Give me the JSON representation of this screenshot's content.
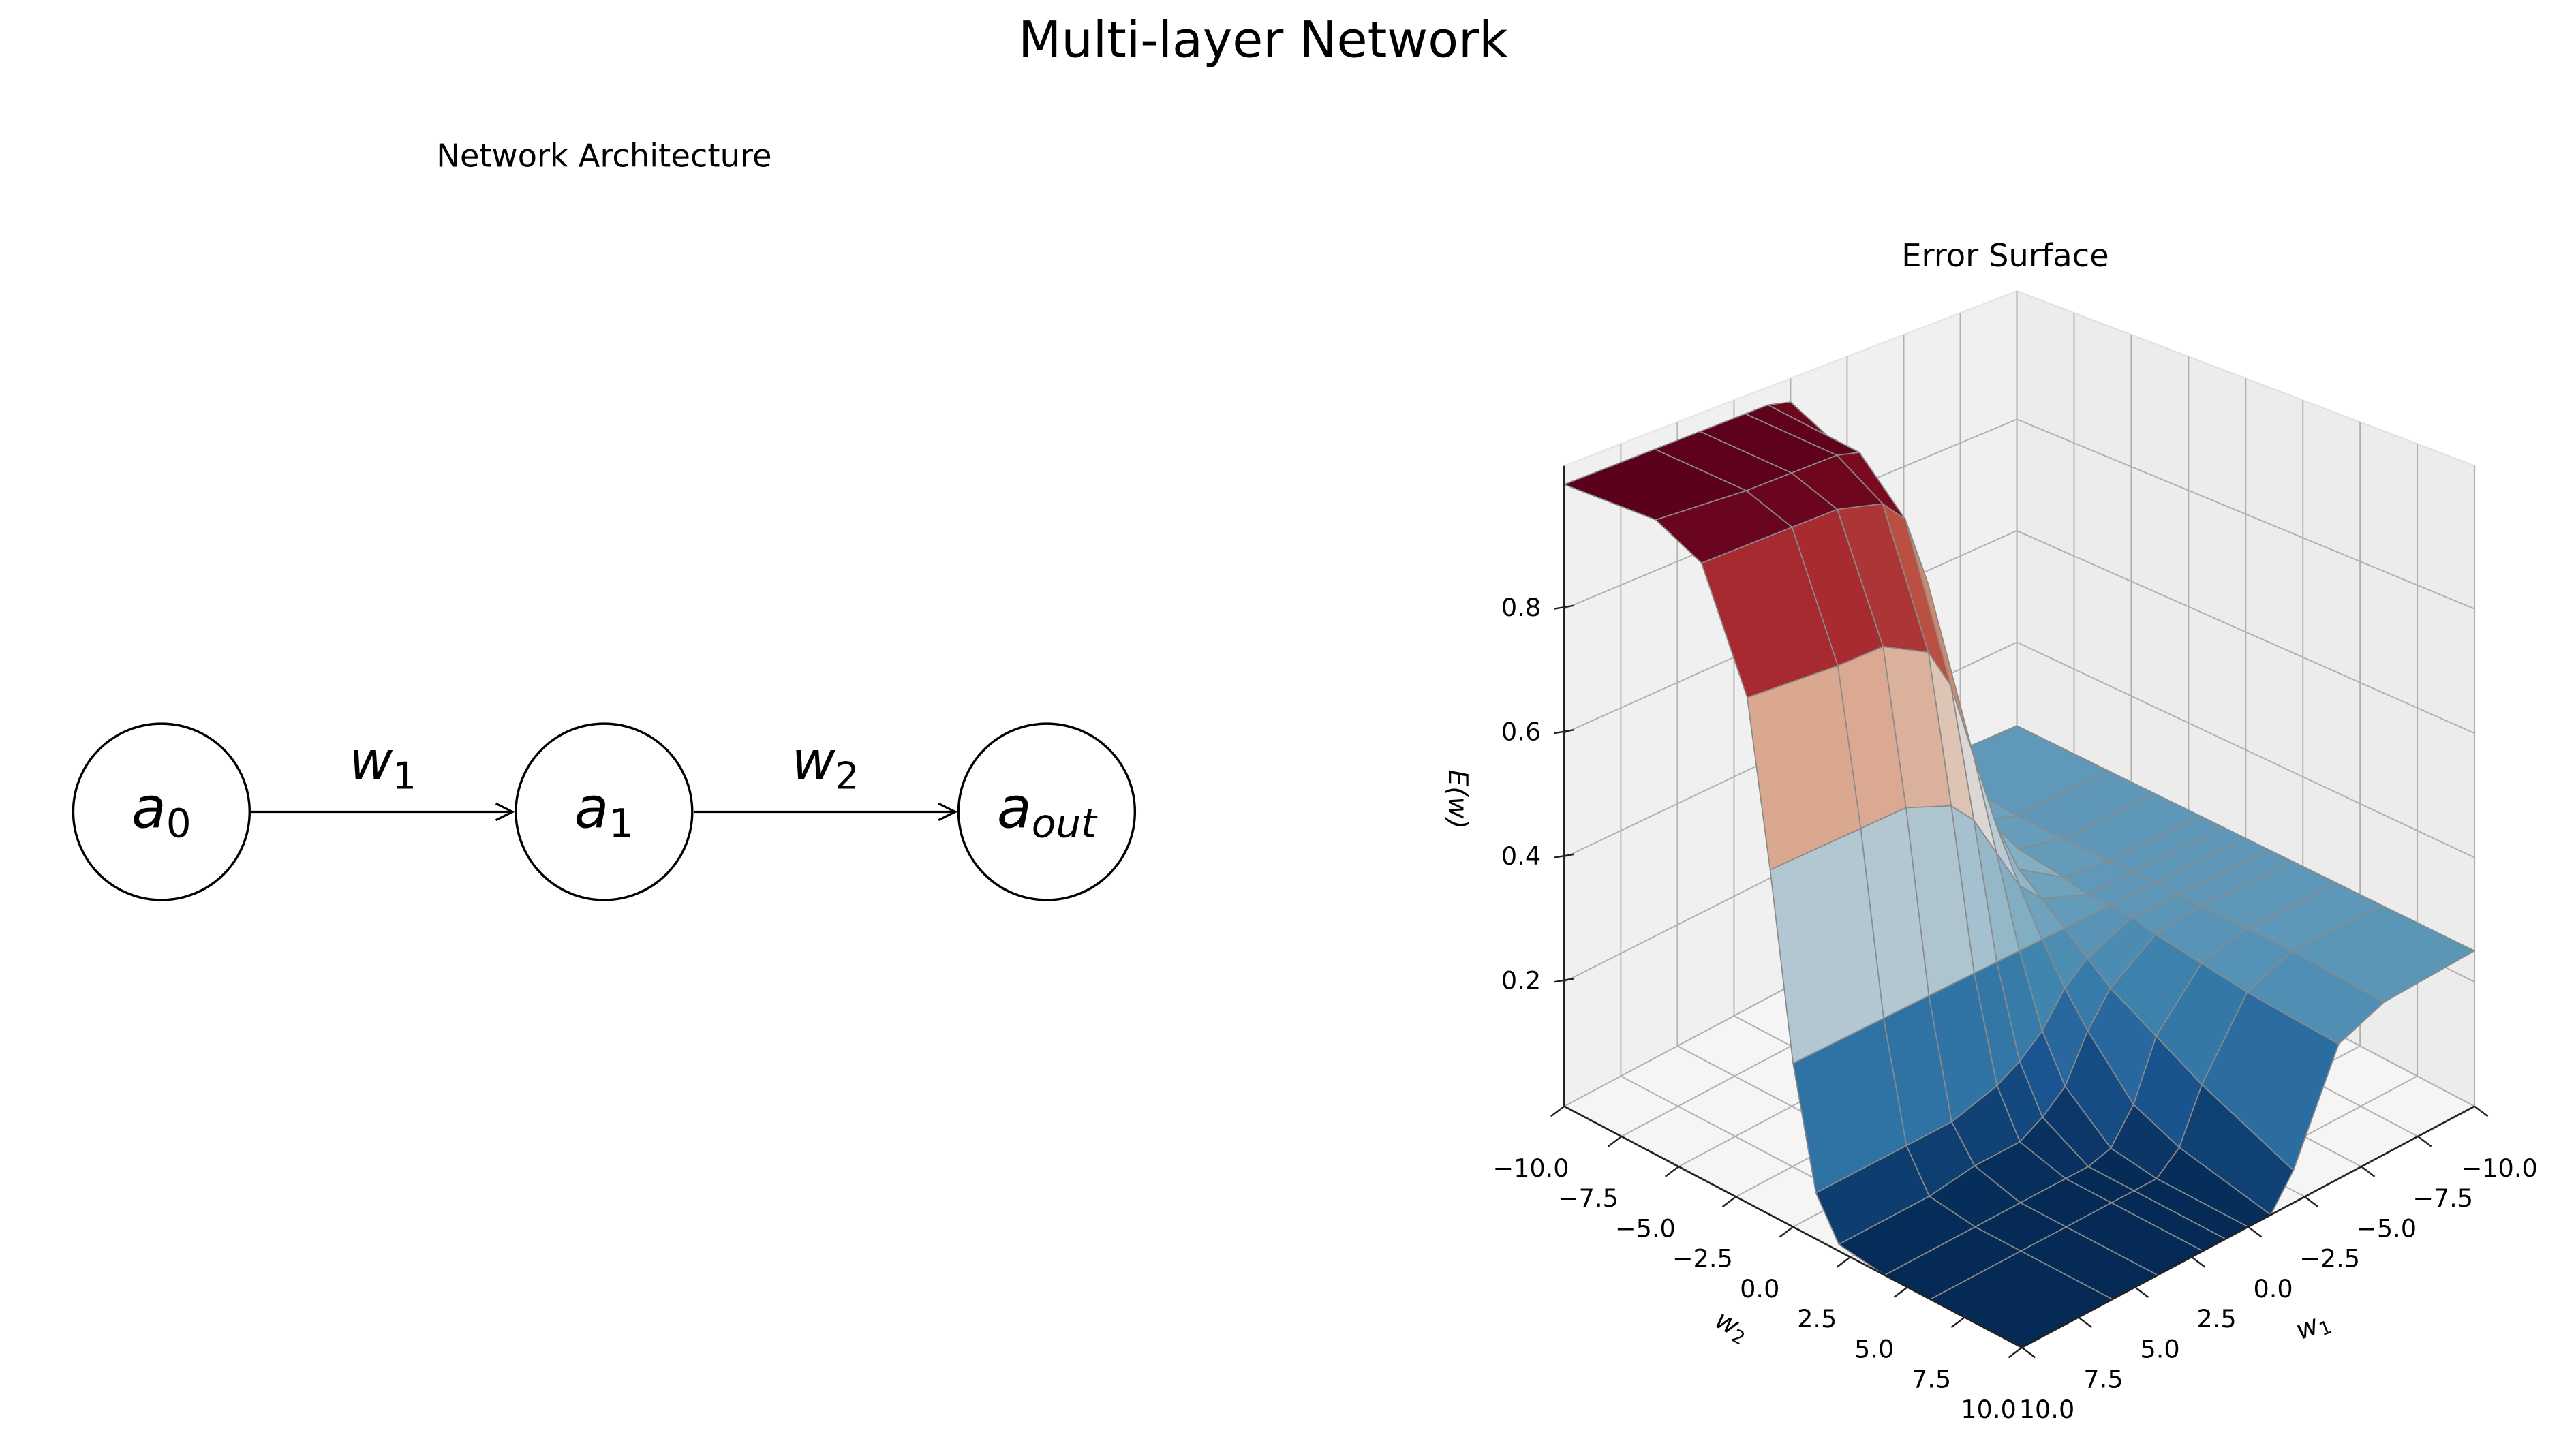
{
  "title": "Multi-layer Network",
  "diagram": {
    "title": "Network Architecture",
    "nodes": [
      {
        "label": "a",
        "subscript": "0"
      },
      {
        "label": "a",
        "subscript": "1"
      },
      {
        "label": "a",
        "subscript": "out"
      }
    ],
    "edges": [
      {
        "label": "w",
        "subscript": "1"
      },
      {
        "label": "w",
        "subscript": "2"
      }
    ]
  },
  "chart_data": {
    "type": "surface",
    "title": "Error Surface",
    "xlabel": {
      "text": "w",
      "subscript": "1"
    },
    "ylabel": {
      "text": "w",
      "subscript": "2"
    },
    "zlabel": "E(w)",
    "colormap": "RdBu_r",
    "x": [
      -10,
      -6,
      -4,
      -2,
      -1,
      0,
      1,
      2,
      4,
      6,
      10
    ],
    "y": [
      -10,
      -6,
      -4,
      -2,
      -1,
      0,
      1,
      2,
      4,
      6,
      10
    ],
    "z": [
      [
        0.25,
        0.25,
        0.25,
        0.25,
        0.25,
        0.25,
        0.25,
        0.25,
        0.25,
        0.25,
        0.25
      ],
      [
        0.26,
        0.25,
        0.25,
        0.25,
        0.25,
        0.25,
        0.25,
        0.25,
        0.25,
        0.25,
        0.24
      ],
      [
        0.3,
        0.28,
        0.27,
        0.26,
        0.25,
        0.25,
        0.25,
        0.24,
        0.23,
        0.22,
        0.21
      ],
      [
        0.59,
        0.45,
        0.38,
        0.31,
        0.28,
        0.25,
        0.22,
        0.19,
        0.15,
        0.11,
        0.05
      ],
      [
        0.88,
        0.7,
        0.56,
        0.4,
        0.32,
        0.25,
        0.19,
        0.14,
        0.06,
        0.03,
        0
      ],
      [
        0.99,
        0.91,
        0.78,
        0.53,
        0.39,
        0.25,
        0.14,
        0.07,
        0.01,
        0,
        0
      ],
      [
        1,
        0.98,
        0.9,
        0.66,
        0.46,
        0.25,
        0.11,
        0.04,
        0,
        0,
        0
      ],
      [
        1,
        0.99,
        0.94,
        0.73,
        0.5,
        0.25,
        0.09,
        0.02,
        0,
        0,
        0
      ],
      [
        1,
        0.99,
        0.96,
        0.77,
        0.53,
        0.25,
        0.07,
        0.02,
        0,
        0,
        0
      ],
      [
        1,
        0.99,
        0.96,
        0.77,
        0.53,
        0.25,
        0.07,
        0.01,
        0,
        0,
        0
      ],
      [
        1,
        1,
        0.96,
        0.78,
        0.53,
        0.25,
        0.07,
        0.01,
        0,
        0,
        0
      ]
    ],
    "xlim": [
      -10,
      10
    ],
    "ylim": [
      -10,
      10
    ],
    "zlim": [
      0,
      1.03
    ],
    "xticks": [
      {
        "value": -10,
        "label": "−10.0"
      },
      {
        "value": -7.5,
        "label": "−7.5"
      },
      {
        "value": -5,
        "label": "−5.0"
      },
      {
        "value": -2.5,
        "label": "−2.5"
      },
      {
        "value": 0,
        "label": "0.0"
      },
      2.5,
      {
        "value": 5,
        "label": "5.0"
      },
      7.5,
      {
        "value": 10,
        "label": "10.0"
      }
    ],
    "yticks": [
      {
        "value": -10,
        "label": "−10.0"
      },
      {
        "value": -7.5,
        "label": "−7.5"
      },
      {
        "value": -5,
        "label": "−5.0"
      },
      {
        "value": -2.5,
        "label": "−2.5"
      },
      {
        "value": 0,
        "label": "0.0"
      },
      2.5,
      {
        "value": 5,
        "label": "5.0"
      },
      7.5,
      {
        "value": 10,
        "label": "10.0"
      }
    ],
    "zticks": [
      0.2,
      0.4,
      0.6,
      0.8
    ],
    "grid": true
  }
}
